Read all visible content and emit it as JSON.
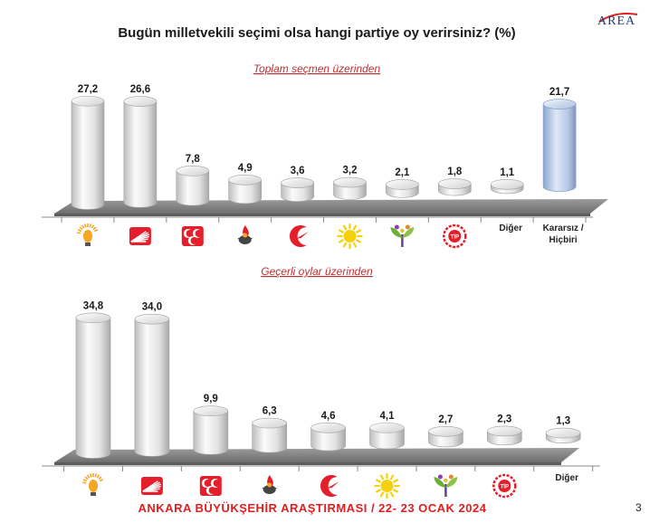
{
  "slide": {
    "title": "Bugün milletvekili seçimi olsa hangi partiye oy verirsiniz? (%)",
    "logo_text": "AREA",
    "footer": "ANKARA BÜYÜKŞEHİR ARAŞTIRMASI / 22- 23 OCAK 2024",
    "page_number": "3"
  },
  "colors": {
    "bar": "#e6e6e6",
    "highlight_bar": "#b6c9e6",
    "subtitle": "#c03030",
    "footer": "#e02020",
    "floor": "#8a8a8a"
  },
  "chart_data": [
    {
      "type": "bar",
      "subtitle": "Toplam seçmen üzerinden",
      "categories": [
        "akp-logo",
        "chp-logo",
        "mhp-logo",
        "dem-logo",
        "yrp-logo",
        "iyi-logo",
        "zafer-logo",
        "tip-logo",
        "Diğer",
        "Kararsız / Hiçbiri"
      ],
      "values": [
        27.2,
        26.6,
        7.8,
        4.9,
        3.6,
        3.2,
        2.1,
        1.8,
        1.1,
        21.7
      ],
      "value_labels": [
        "27,2",
        "26,6",
        "7,8",
        "4,9",
        "3,6",
        "3,2",
        "2,1",
        "1,8",
        "1,1",
        "21,7"
      ],
      "text_categories": [
        "Diğer",
        "Kararsız / Hiçbiri"
      ],
      "highlight_category": "Kararsız / Hiçbiri"
    },
    {
      "type": "bar",
      "subtitle": "Geçerli oylar üzerinden",
      "categories": [
        "akp-logo",
        "chp-logo",
        "mhp-logo",
        "dem-logo",
        "yrp-logo",
        "iyi-logo",
        "zafer-logo",
        "tip-logo",
        "Diğer"
      ],
      "values": [
        34.8,
        34.0,
        9.9,
        6.3,
        4.6,
        4.1,
        2.7,
        2.3,
        1.3
      ],
      "value_labels": [
        "34,8",
        "34,0",
        "9,9",
        "6,3",
        "4,6",
        "4,1",
        "2,7",
        "2,3",
        "1,3"
      ],
      "text_categories": [
        "Diğer"
      ]
    }
  ]
}
